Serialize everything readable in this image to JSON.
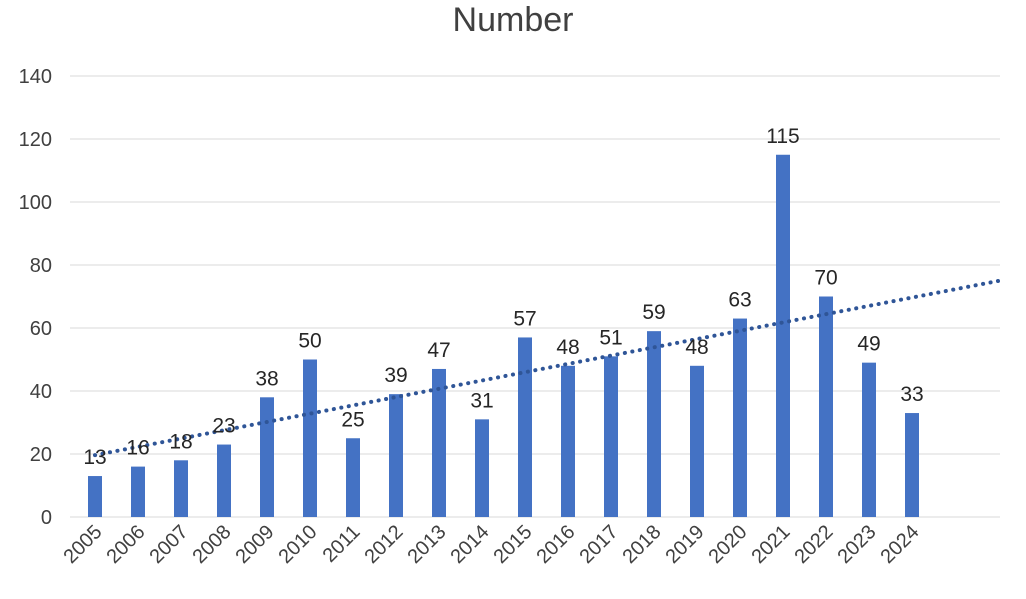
{
  "colors": {
    "bar": "#4472C4",
    "trendline": "#2F5597",
    "grid": "#D9D9D9",
    "text": "#404040"
  },
  "chart_data": {
    "type": "bar",
    "title": "Number",
    "xlabel": "",
    "ylabel": "",
    "ylim": [
      0,
      140
    ],
    "yticks": [
      0,
      20,
      40,
      60,
      80,
      100,
      120,
      140
    ],
    "grid": true,
    "legend": "none",
    "trendline": "linear (dotted)",
    "categories": [
      "2005",
      "2006",
      "2007",
      "2008",
      "2009",
      "2010",
      "2011",
      "2012",
      "2013",
      "2014",
      "2015",
      "2016",
      "2017",
      "2018",
      "2019",
      "2020",
      "2021",
      "2022",
      "2023",
      "2024"
    ],
    "values": [
      13,
      16,
      18,
      23,
      38,
      50,
      25,
      39,
      47,
      31,
      57,
      48,
      51,
      59,
      48,
      63,
      115,
      70,
      49,
      33
    ]
  }
}
